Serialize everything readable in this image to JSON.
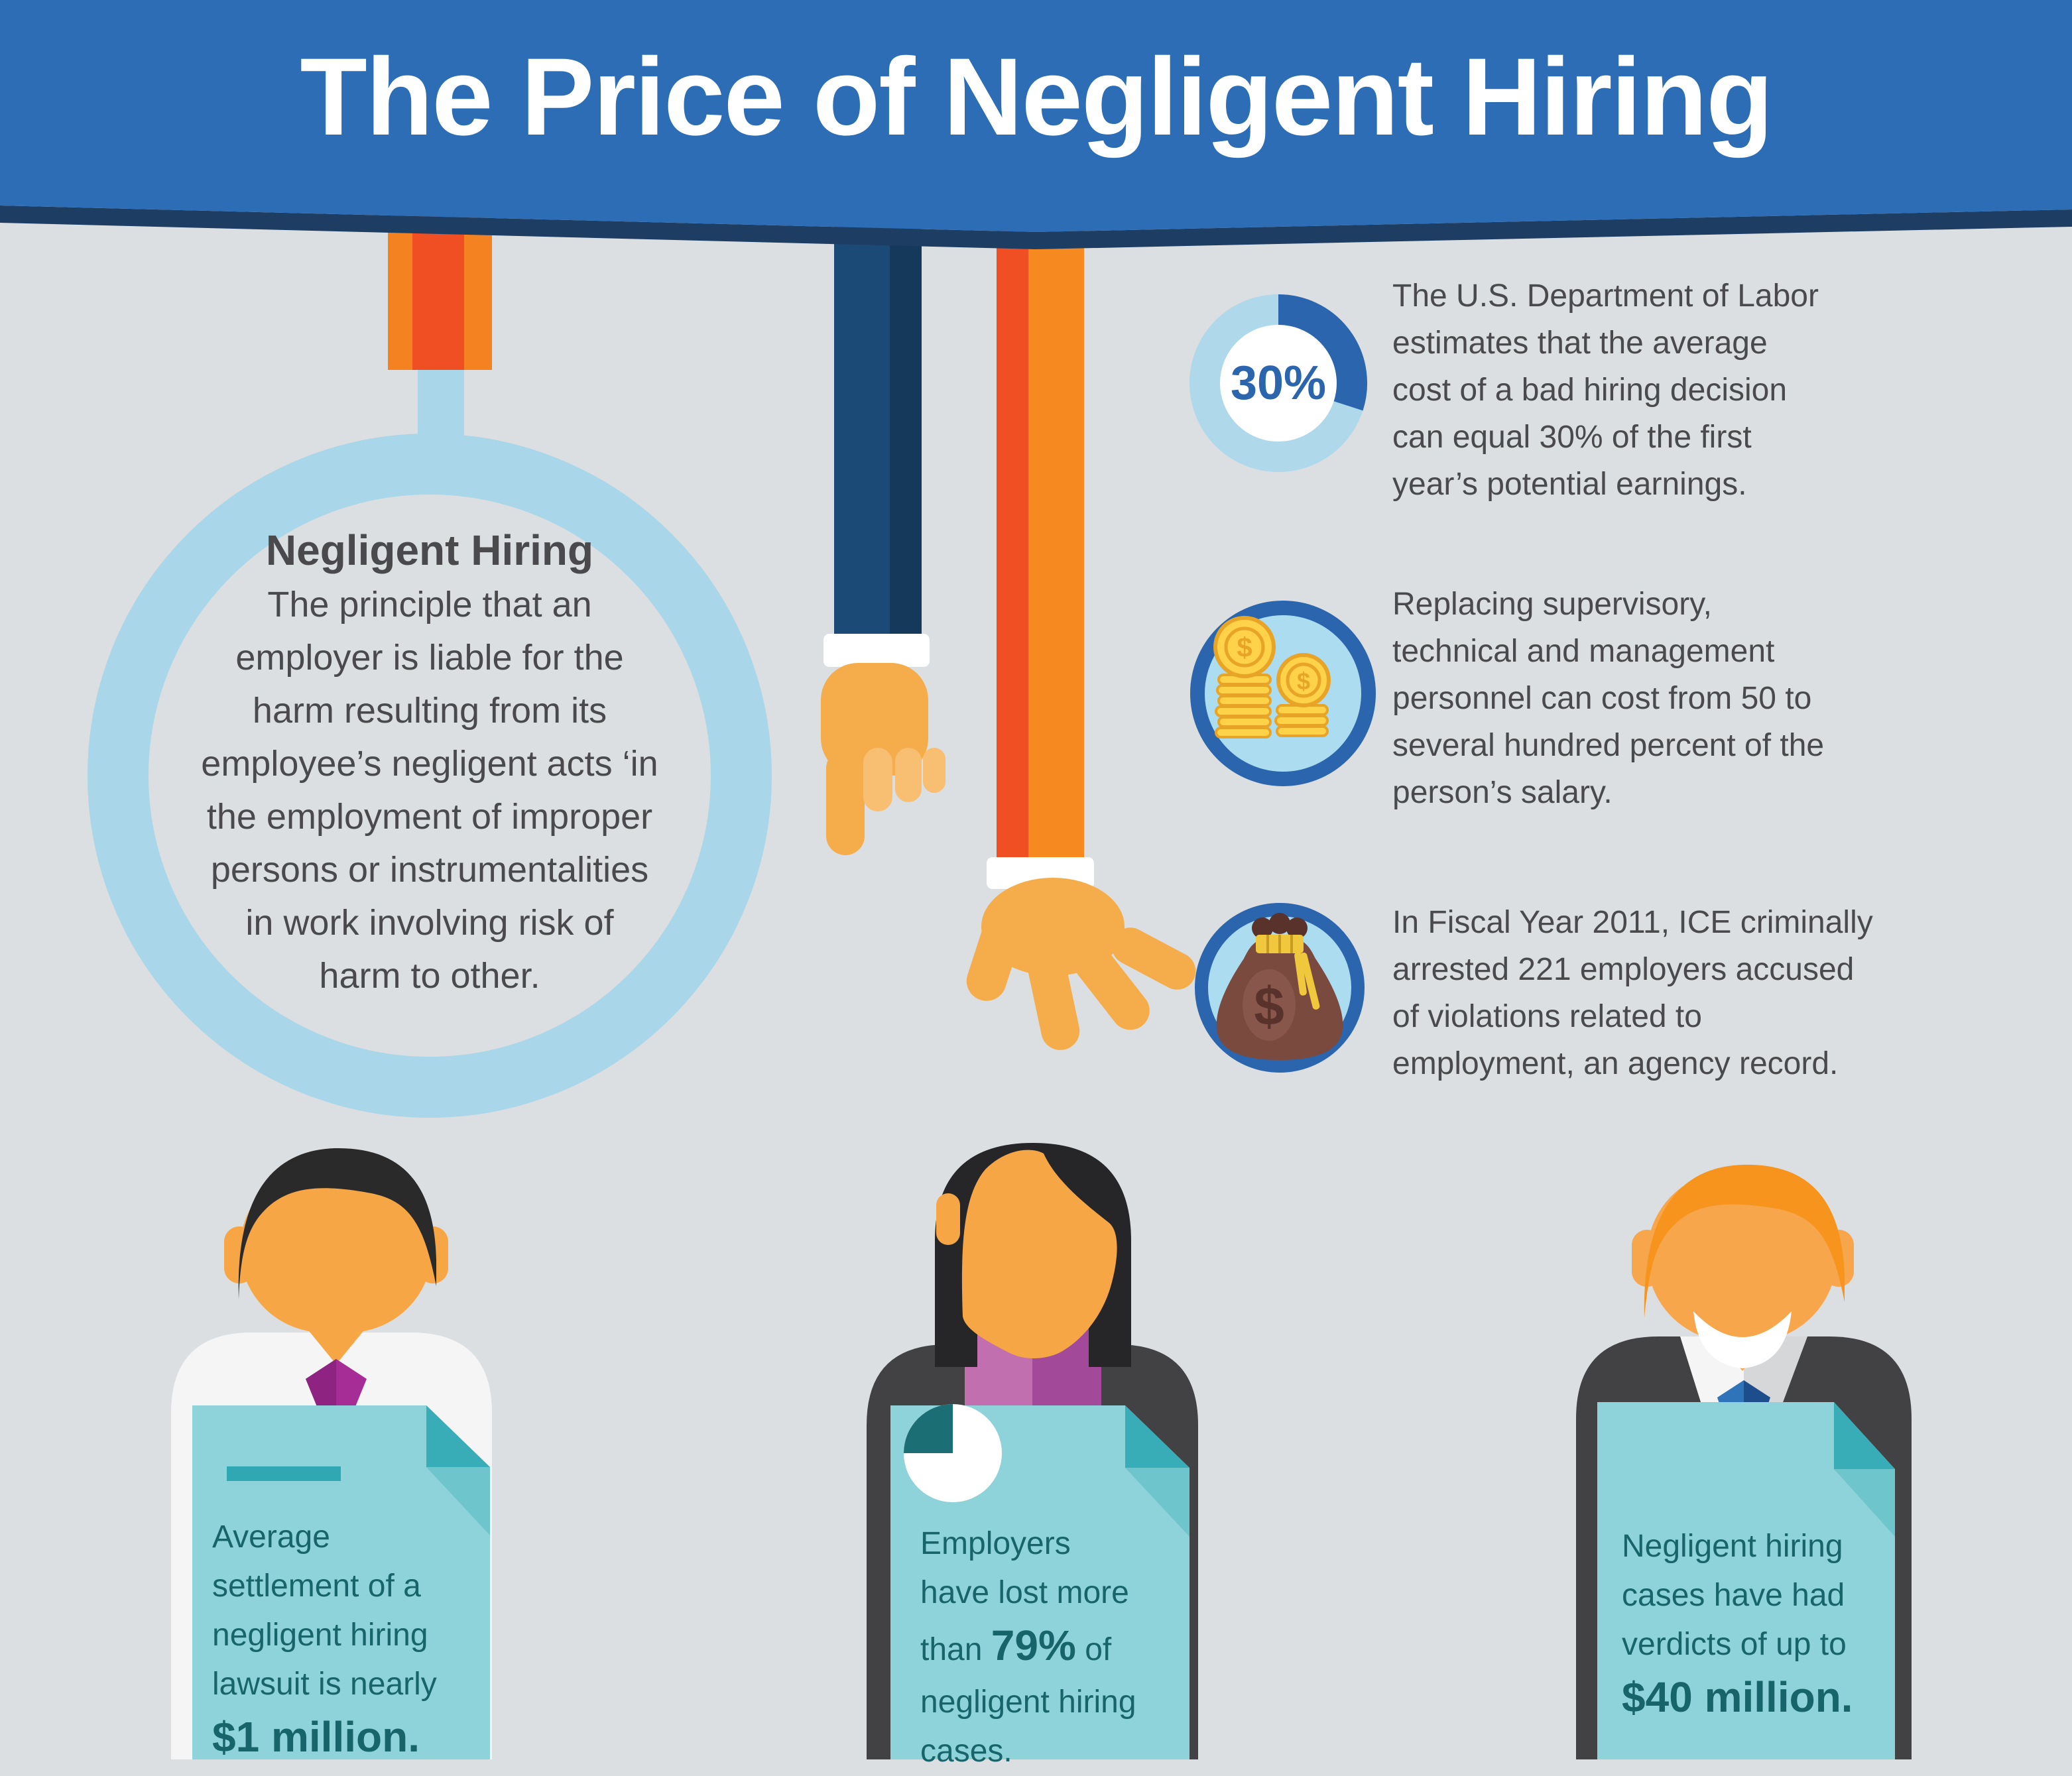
{
  "title": "The Price of Negligent Hiring",
  "definition": {
    "heading": "Negligent Hiring",
    "lines": [
      "The principle that an",
      "employer is liable for the",
      "harm resulting from its",
      "employee’s negligent acts ‘in",
      "the employment of improper",
      "persons or instrumentalities",
      "in work involving risk of",
      "harm to other."
    ]
  },
  "stats": [
    {
      "icon": "donut-chart-30-percent",
      "donut_value_percent": 30,
      "value_label": "30%",
      "lines": [
        "The U.S. Department of Labor",
        "estimates that the average",
        "cost of a bad hiring decision",
        "can equal 30% of the first",
        "year’s potential earnings."
      ]
    },
    {
      "icon": "coins-icon",
      "lines": [
        "Replacing supervisory,",
        "technical and management",
        "personnel can cost from 50 to",
        "several hundred percent of the",
        "person’s salary."
      ]
    },
    {
      "icon": "money-bag-icon",
      "lines": [
        "In Fiscal Year 2011, ICE criminally",
        "arrested 221 employers accused",
        "of violations related to",
        "employment, an agency record."
      ]
    }
  ],
  "cards": [
    {
      "person": "man-dark-hair",
      "lines_before": [
        "Average",
        "settlement of a",
        "negligent hiring",
        "lawsuit is nearly"
      ],
      "bold": "$1 million."
    },
    {
      "person": "woman-dark-hair",
      "icon": "pie-chart-icon",
      "lines_before": [
        "Employers",
        "have lost more"
      ],
      "mid_pre": "than ",
      "mid_bold": "79%",
      "mid_post": " of",
      "lines_after": [
        "negligent hiring",
        "cases."
      ]
    },
    {
      "person": "man-orange-hair",
      "lines_before": [
        "Negligent hiring",
        "cases have had",
        "verdicts of up to"
      ],
      "bold": "$40 million."
    }
  ],
  "colors": {
    "background": "#DCDFE2",
    "header_blue": "#2C6DB5",
    "header_navy": "#1E3D63",
    "title_white": "#FFFFFF",
    "body_text_gray": "#4A4A4C",
    "magnifier_light_blue": "#A9D6E8",
    "donut_dark_blue": "#2A65AE",
    "donut_light_blue": "#AFD8EA",
    "icon_circle_fill": "#ACDCF0",
    "orange_red": "#F04E23",
    "orange_bright": "#F6891F",
    "orange_light": "#F58220",
    "navy_sleeve": "#1C4A77",
    "skin_orange": "#F6A644",
    "hand_orange": "#F5AC4B",
    "coin_gold": "#FFD24A",
    "coin_edge": "#E8A426",
    "bag_brown": "#7B4A3E",
    "rope_yellow": "#EFC83D",
    "doc_teal": "#8ED3D9",
    "doc_fold": "#38ACB7",
    "doc_shadow": "#6FC5CC",
    "doc_text_teal": "#18646B",
    "suit_gray": "#424244",
    "blouse_purple_light": "#C26FB0",
    "blouse_purple_dark": "#A2499A",
    "tie_magenta": "#A62D96",
    "tie_blue": "#2F74B8",
    "hair_black": "#2A2A2B",
    "hair_orange": "#F7941D"
  }
}
